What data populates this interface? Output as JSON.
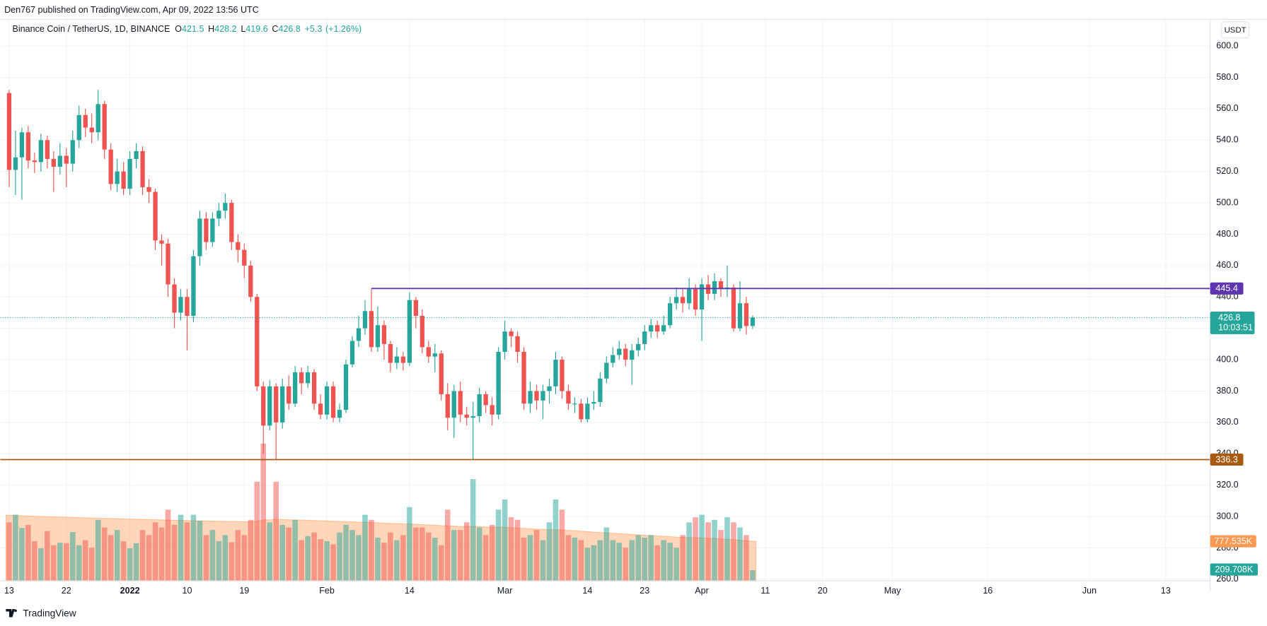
{
  "header": {
    "text": "Den767 published on TradingView.com, Apr 09, 2022 13:56 UTC"
  },
  "footer": {
    "brand": "TradingView"
  },
  "chart_data": {
    "type": "candlestick",
    "title": "Binance Coin / TetherUS, 1D, BINANCE",
    "currency": "USDT",
    "legend_labels": [
      "O",
      "H",
      "L",
      "C"
    ],
    "change": 5.3,
    "change_label": "+5.3",
    "change_pct": 1.26,
    "change_pct_label": "(+1.26%)",
    "up_color": "#26a69a",
    "down_color": "#ef5350",
    "volume_ma_color": "#ff9850",
    "open": [
      570,
      521,
      529,
      545,
      527,
      526,
      540,
      528,
      523,
      530,
      525,
      540,
      556,
      548,
      545,
      563,
      534,
      512,
      520,
      509,
      528,
      533,
      510,
      507,
      476,
      474,
      448,
      430,
      440,
      428,
      466,
      490,
      475,
      490,
      495,
      500,
      475,
      470,
      460,
      440,
      383,
      358,
      383,
      360,
      383,
      372,
      392,
      385,
      392,
      372,
      365,
      383,
      363,
      368,
      397,
      412,
      420,
      431,
      408,
      422,
      410,
      398,
      402,
      398,
      438,
      428,
      408,
      402,
      404,
      378,
      363,
      380,
      365,
      363,
      364,
      378,
      371,
      365,
      405,
      418,
      415,
      405,
      372,
      380,
      374,
      380,
      383,
      400,
      380,
      372,
      372,
      362,
      372,
      373,
      388,
      398,
      403,
      407,
      400,
      406,
      410,
      418,
      422,
      418,
      422,
      436,
      440,
      436,
      445,
      432,
      448,
      442,
      450,
      445,
      446,
      420,
      436,
      421.5
    ],
    "high": [
      572,
      546,
      548,
      549,
      532,
      544,
      543,
      533,
      538,
      535,
      546,
      562,
      560,
      557,
      572,
      565,
      538,
      528,
      526,
      533,
      538,
      536,
      515,
      509,
      480,
      477,
      452,
      445,
      445,
      470,
      495,
      494,
      494,
      500,
      506,
      502,
      480,
      474,
      463,
      442,
      386,
      387,
      385,
      388,
      390,
      396,
      395,
      396,
      394,
      378,
      386,
      386,
      372,
      400,
      415,
      428,
      438,
      445,
      434,
      425,
      412,
      408,
      405,
      443,
      440,
      432,
      412,
      410,
      406,
      385,
      384,
      386,
      370,
      373,
      382,
      380,
      376,
      408,
      425,
      420,
      418,
      408,
      386,
      384,
      384,
      388,
      405,
      402,
      384,
      376,
      375,
      376,
      380,
      392,
      402,
      408,
      412,
      410,
      410,
      414,
      422,
      426,
      425,
      428,
      440,
      446,
      445,
      452,
      448,
      452,
      454,
      455,
      452,
      460,
      448,
      450,
      440,
      428.2
    ],
    "low": [
      510,
      505,
      502,
      522,
      519,
      520,
      522,
      507,
      518,
      510,
      520,
      535,
      542,
      538,
      540,
      528,
      508,
      507,
      505,
      505,
      522,
      505,
      500,
      470,
      460,
      440,
      420,
      425,
      406,
      424,
      460,
      470,
      472,
      485,
      490,
      470,
      462,
      452,
      437,
      380,
      340,
      355,
      336,
      356,
      368,
      370,
      378,
      382,
      368,
      362,
      362,
      360,
      360,
      366,
      395,
      408,
      416,
      405,
      405,
      400,
      392,
      394,
      393,
      396,
      420,
      404,
      398,
      392,
      374,
      355,
      350,
      360,
      358,
      336,
      360,
      366,
      358,
      362,
      400,
      408,
      398,
      368,
      366,
      368,
      362,
      372,
      378,
      375,
      368,
      366,
      360,
      360,
      368,
      370,
      385,
      395,
      400,
      396,
      384,
      402,
      406,
      414,
      414,
      416,
      420,
      432,
      430,
      432,
      428,
      412,
      438,
      438,
      440,
      440,
      418,
      418,
      416,
      419.6
    ],
    "close": [
      521,
      529,
      545,
      527,
      526,
      540,
      528,
      523,
      530,
      525,
      540,
      556,
      548,
      545,
      563,
      534,
      512,
      520,
      509,
      528,
      533,
      510,
      507,
      476,
      474,
      448,
      430,
      440,
      428,
      466,
      490,
      475,
      490,
      495,
      500,
      475,
      470,
      460,
      440,
      383,
      358,
      383,
      360,
      383,
      372,
      392,
      385,
      392,
      372,
      365,
      383,
      363,
      368,
      397,
      412,
      420,
      431,
      408,
      422,
      410,
      398,
      402,
      398,
      438,
      428,
      408,
      402,
      404,
      378,
      363,
      380,
      365,
      363,
      364,
      378,
      371,
      365,
      405,
      418,
      415,
      405,
      372,
      380,
      374,
      380,
      383,
      400,
      380,
      372,
      372,
      362,
      372,
      373,
      388,
      398,
      403,
      407,
      400,
      406,
      410,
      418,
      422,
      418,
      422,
      436,
      440,
      436,
      445,
      432,
      448,
      442,
      450,
      445,
      446,
      420,
      436,
      421.5,
      426.8
    ],
    "volume": [
      1150,
      1300,
      1040,
      1100,
      780,
      640,
      980,
      700,
      750,
      740,
      960,
      700,
      800,
      650,
      1200,
      1050,
      900,
      1000,
      780,
      640,
      740,
      1000,
      900,
      1150,
      1050,
      1400,
      1100,
      1300,
      1150,
      1300,
      1180,
      900,
      1000,
      780,
      900,
      760,
      1000,
      900,
      1200,
      1950,
      2700,
      1150,
      1950,
      1100,
      1050,
      1200,
      800,
      880,
      950,
      820,
      780,
      720,
      950,
      1100,
      1000,
      900,
      1300,
      1200,
      850,
      750,
      950,
      800,
      900,
      1450,
      1050,
      1050,
      950,
      850,
      700,
      1400,
      1000,
      1000,
      1150,
      2000,
      1050,
      900,
      1100,
      1400,
      1600,
      1250,
      1200,
      850,
      900,
      1000,
      800,
      1150,
      1600,
      1400,
      900,
      850,
      800,
      650,
      700,
      800,
      1050,
      800,
      750,
      650,
      800,
      900,
      850,
      900,
      700,
      800,
      750,
      650,
      900,
      1150,
      1250,
      1300,
      1150,
      1200,
      1000,
      1250,
      1150,
      1050,
      900,
      209.708
    ],
    "volume_ma": [
      1290,
      1285,
      1280,
      1275,
      1270,
      1265,
      1262,
      1258,
      1255,
      1250,
      1247,
      1243,
      1240,
      1236,
      1233,
      1230,
      1226,
      1222,
      1218,
      1215,
      1212,
      1208,
      1205,
      1202,
      1198,
      1195,
      1192,
      1188,
      1185,
      1182,
      1180,
      1177,
      1175,
      1172,
      1170,
      1168,
      1165,
      1162,
      1160,
      1175,
      1200,
      1198,
      1210,
      1205,
      1200,
      1198,
      1195,
      1190,
      1186,
      1182,
      1178,
      1172,
      1168,
      1165,
      1160,
      1155,
      1152,
      1148,
      1142,
      1136,
      1130,
      1125,
      1120,
      1118,
      1112,
      1106,
      1100,
      1094,
      1086,
      1082,
      1076,
      1070,
      1066,
      1072,
      1066,
      1060,
      1055,
      1052,
      1050,
      1045,
      1040,
      1032,
      1025,
      1018,
      1012,
      1008,
      1006,
      1000,
      992,
      985,
      976,
      968,
      958,
      950,
      942,
      935,
      928,
      920,
      912,
      905,
      898,
      890,
      882,
      875,
      868,
      860,
      855,
      852,
      850,
      845,
      838,
      832,
      825,
      818,
      810,
      800,
      790,
      777.535
    ],
    "volume_label": "209.708K",
    "volume_ma_label": "777.535K",
    "last_price_countdown": "10:03:51",
    "hlines": [
      {
        "value": 445.4,
        "color": "#5e35b1"
      },
      {
        "value": 336.3,
        "color": "#a65a12"
      }
    ],
    "xlim": [
      -1.4,
      189
    ],
    "xticks": [
      {
        "value": 0,
        "label": "13"
      },
      {
        "value": 9,
        "label": "22"
      },
      {
        "value": 19,
        "label": "2022"
      },
      {
        "value": 28,
        "label": "10"
      },
      {
        "value": 37,
        "label": "19"
      },
      {
        "value": 50,
        "label": "Feb"
      },
      {
        "value": 63,
        "label": "14"
      },
      {
        "value": 78,
        "label": "Mar"
      },
      {
        "value": 91,
        "label": "14"
      },
      {
        "value": 100,
        "label": "23"
      },
      {
        "value": 109,
        "label": "Apr"
      },
      {
        "value": 119,
        "label": "11"
      },
      {
        "value": 128,
        "label": "20"
      },
      {
        "value": 139,
        "label": "May"
      },
      {
        "value": 154,
        "label": "16"
      },
      {
        "value": 170,
        "label": "Jun"
      },
      {
        "value": 182,
        "label": "13"
      }
    ],
    "ylim": [
      259,
      617
    ],
    "yticks": [
      {
        "value": 260,
        "label": "260.0"
      },
      {
        "value": 280,
        "label": "280.0"
      },
      {
        "value": 300,
        "label": "300.0"
      },
      {
        "value": 320,
        "label": "320.0"
      },
      {
        "value": 340,
        "label": "340.0"
      },
      {
        "value": 360,
        "label": "360.0"
      },
      {
        "value": 380,
        "label": "380.0"
      },
      {
        "value": 400,
        "label": "400.0"
      },
      {
        "value": 420,
        "label": "420.0"
      },
      {
        "value": 440,
        "label": "440.0"
      },
      {
        "value": 460,
        "label": "460.0"
      },
      {
        "value": 480,
        "label": "480.0"
      },
      {
        "value": 500,
        "label": "500.0"
      },
      {
        "value": 520,
        "label": "520.0"
      },
      {
        "value": 540,
        "label": "540.0"
      },
      {
        "value": 560,
        "label": "560.0"
      },
      {
        "value": 580,
        "label": "580.0"
      },
      {
        "value": 600,
        "label": "600.0"
      }
    ],
    "grid": true
  }
}
